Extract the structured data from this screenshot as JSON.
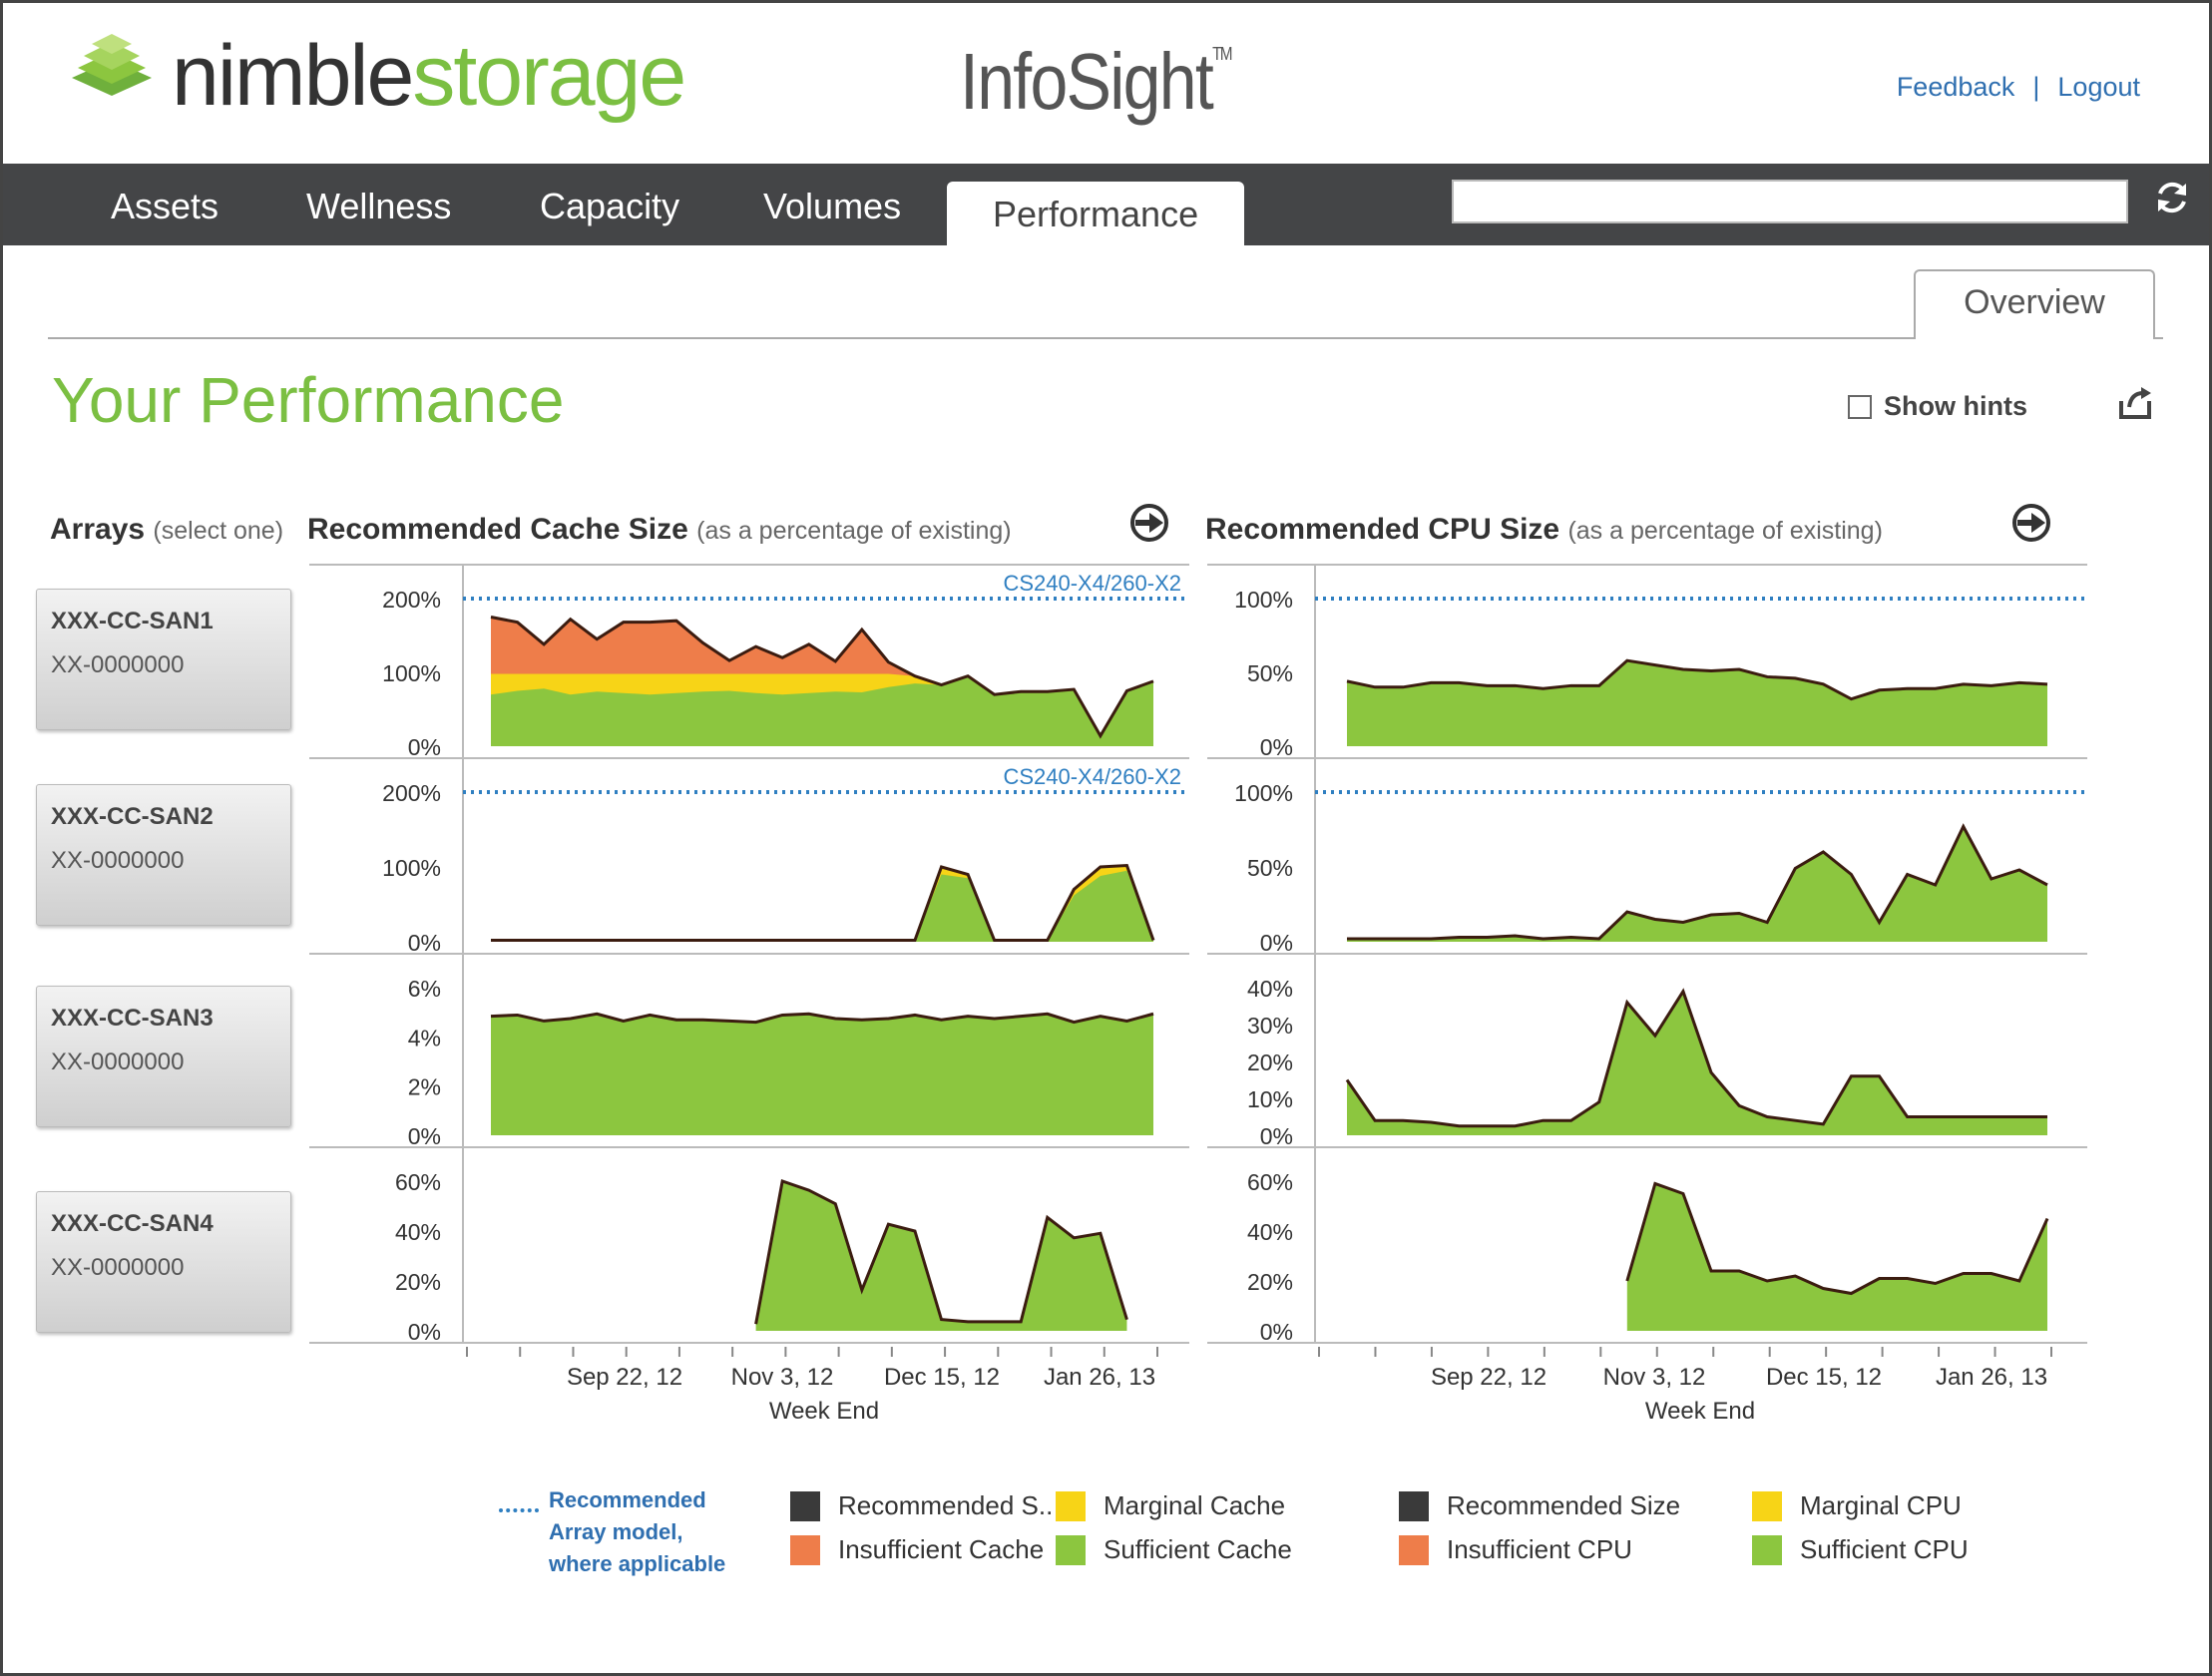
{
  "header": {
    "logo_part1": "nimble",
    "logo_part2": "storage",
    "app_title": "InfoSight",
    "app_title_tm": "TM",
    "feedback_label": "Feedback",
    "separator": "|",
    "logout_label": "Logout"
  },
  "nav": {
    "tabs": [
      {
        "label": "Assets"
      },
      {
        "label": "Wellness"
      },
      {
        "label": "Capacity"
      },
      {
        "label": "Volumes"
      },
      {
        "label": "Performance",
        "active": true
      }
    ],
    "search_value": ""
  },
  "subtabs": {
    "overview_label": "Overview"
  },
  "page": {
    "title": "Your Performance",
    "show_hints_label": "Show hints",
    "show_hints_checked": false
  },
  "arrays_panel": {
    "title": "Arrays",
    "subtitle": "(select one)",
    "arrays": [
      {
        "name": "XXX-CC-SAN1",
        "id": "XX-0000000"
      },
      {
        "name": "XXX-CC-SAN2",
        "id": "XX-0000000"
      },
      {
        "name": "XXX-CC-SAN3",
        "id": "XX-0000000"
      },
      {
        "name": "XXX-CC-SAN4",
        "id": "XX-0000000"
      }
    ]
  },
  "cache_panel": {
    "title": "Recommended Cache Size",
    "subtitle": "(as a percentage of existing)"
  },
  "cpu_panel": {
    "title": "Recommended CPU Size",
    "subtitle": "(as a percentage of existing)"
  },
  "colors": {
    "sufficient": "#8cc63f",
    "marginal": "#f7d417",
    "insufficient": "#ee7d4a",
    "recommended_line": "#3b1c10",
    "model_line": "#2f7fc1"
  },
  "chart_data": [
    {
      "type": "area",
      "panel": "cache",
      "array": "XXX-CC-SAN1",
      "yticks": [
        "200%",
        "100%",
        "0%"
      ],
      "ylim": [
        0,
        200
      ],
      "xticks": [
        "Sep 22, 12",
        "Nov 3, 12",
        "Dec 15, 12",
        "Jan 26, 13"
      ],
      "xlabel": "Week End",
      "reference_line": {
        "value": 200,
        "label": "CS240-X4/260-X2"
      },
      "series": [
        {
          "name": "Recommended Size",
          "values": [
            175,
            168,
            138,
            172,
            145,
            168,
            168,
            170,
            140,
            116,
            135,
            120,
            138,
            115,
            158,
            114,
            95,
            83,
            95,
            70,
            74,
            74,
            77,
            14,
            75,
            88
          ]
        },
        {
          "name": "Sufficient Cache",
          "values": [
            70,
            75,
            78,
            70,
            74,
            72,
            70,
            72,
            74,
            75,
            72,
            70,
            72,
            74,
            73,
            80,
            85,
            83,
            95,
            70,
            74,
            74,
            77,
            14,
            75,
            88
          ]
        },
        {
          "name": "Marginal Cache",
          "values": [
            98,
            98,
            98,
            98,
            98,
            98,
            98,
            98,
            98,
            98,
            98,
            98,
            98,
            98,
            98,
            98,
            95,
            83,
            95,
            70,
            74,
            74,
            77,
            14,
            75,
            88
          ]
        }
      ]
    },
    {
      "type": "area",
      "panel": "cache",
      "array": "XXX-CC-SAN2",
      "yticks": [
        "200%",
        "100%",
        "0%"
      ],
      "ylim": [
        0,
        200
      ],
      "xticks": [
        "Sep 22, 12",
        "Nov 3, 12",
        "Dec 15, 12",
        "Jan 26, 13"
      ],
      "xlabel": "Week End",
      "reference_line": {
        "value": 200,
        "label": "CS240-X4/260-X2"
      },
      "series": [
        {
          "name": "Recommended Size",
          "values": [
            2,
            2,
            2,
            2,
            2,
            2,
            2,
            2,
            2,
            2,
            2,
            2,
            2,
            2,
            2,
            2,
            2,
            100,
            90,
            2,
            2,
            2,
            70,
            100,
            102,
            2
          ]
        },
        {
          "name": "Sufficient Cache",
          "values": [
            2,
            2,
            2,
            2,
            2,
            2,
            2,
            2,
            2,
            2,
            2,
            2,
            2,
            2,
            2,
            2,
            2,
            90,
            85,
            2,
            2,
            2,
            62,
            88,
            95,
            2
          ]
        }
      ]
    },
    {
      "type": "area",
      "panel": "cache",
      "array": "XXX-CC-SAN3",
      "yticks": [
        "6%",
        "4%",
        "2%",
        "0%"
      ],
      "ylim": [
        0,
        6.2
      ],
      "xticks": [
        "Sep 22, 12",
        "Nov 3, 12",
        "Dec 15, 12",
        "Jan 26, 13"
      ],
      "xlabel": "Week End",
      "series": [
        {
          "name": "Recommended Size",
          "values": [
            5.0,
            5.05,
            4.8,
            4.9,
            5.1,
            4.8,
            5.05,
            4.85,
            4.85,
            4.8,
            4.75,
            5.05,
            5.1,
            4.9,
            4.85,
            4.9,
            5.05,
            4.85,
            5.0,
            4.9,
            5.0,
            5.1,
            4.75,
            5.0,
            4.8,
            5.1
          ]
        },
        {
          "name": "Sufficient Cache",
          "values": [
            5.0,
            5.05,
            4.8,
            4.9,
            5.1,
            4.8,
            5.05,
            4.85,
            4.85,
            4.8,
            4.75,
            5.05,
            5.1,
            4.9,
            4.85,
            4.9,
            5.05,
            4.85,
            5.0,
            4.9,
            5.0,
            5.1,
            4.75,
            5.0,
            4.8,
            5.1
          ]
        }
      ]
    },
    {
      "type": "area",
      "panel": "cache",
      "array": "XXX-CC-SAN4",
      "yticks": [
        "60%",
        "40%",
        "20%",
        "0%"
      ],
      "ylim": [
        0,
        66
      ],
      "xticks": [
        "Sep 22, 12",
        "Nov 3, 12",
        "Dec 15, 12",
        "Jan 26, 13"
      ],
      "xlabel": "Week End",
      "series": [
        {
          "name": "Recommended Size",
          "values": [
            null,
            null,
            null,
            null,
            null,
            null,
            null,
            null,
            null,
            null,
            3,
            66,
            62,
            56,
            18,
            47,
            44,
            5,
            4,
            4,
            4,
            50,
            41,
            43,
            5
          ]
        },
        {
          "name": "Sufficient Cache",
          "values": [
            null,
            null,
            null,
            null,
            null,
            null,
            null,
            null,
            null,
            null,
            3,
            66,
            62,
            56,
            18,
            47,
            44,
            5,
            4,
            4,
            4,
            50,
            41,
            43,
            5
          ]
        }
      ]
    },
    {
      "type": "area",
      "panel": "cpu",
      "array": "XXX-CC-SAN1",
      "yticks": [
        "100%",
        "50%",
        "0%"
      ],
      "ylim": [
        0,
        100
      ],
      "xticks": [
        "Sep 22, 12",
        "Nov 3, 12",
        "Dec 15, 12",
        "Jan 26, 13"
      ],
      "xlabel": "Week End",
      "reference_line": {
        "value": 100
      },
      "series": [
        {
          "name": "Recommended Size",
          "values": [
            44,
            40,
            40,
            43,
            43,
            41,
            41,
            39,
            41,
            41,
            58,
            55,
            52,
            51,
            52,
            47,
            46,
            42,
            32,
            38,
            39,
            39,
            42,
            41,
            43,
            42
          ]
        },
        {
          "name": "Sufficient CPU",
          "values": [
            44,
            40,
            40,
            43,
            43,
            41,
            41,
            39,
            41,
            41,
            58,
            55,
            52,
            51,
            52,
            47,
            46,
            42,
            32,
            38,
            39,
            39,
            42,
            41,
            43,
            42
          ]
        }
      ]
    },
    {
      "type": "area",
      "panel": "cpu",
      "array": "XXX-CC-SAN2",
      "yticks": [
        "100%",
        "50%",
        "0%"
      ],
      "ylim": [
        0,
        100
      ],
      "xticks": [
        "Sep 22, 12",
        "Nov 3, 12",
        "Dec 15, 12",
        "Jan 26, 13"
      ],
      "xlabel": "Week End",
      "reference_line": {
        "value": 100
      },
      "series": [
        {
          "name": "Recommended Size",
          "values": [
            2,
            2,
            2,
            2,
            3,
            3,
            4,
            2,
            3,
            2,
            20,
            15,
            13,
            18,
            19,
            13,
            49,
            60,
            45,
            13,
            45,
            38,
            77,
            42,
            48,
            38
          ]
        },
        {
          "name": "Sufficient CPU",
          "values": [
            2,
            2,
            2,
            2,
            3,
            3,
            4,
            2,
            3,
            2,
            20,
            15,
            13,
            18,
            19,
            13,
            49,
            60,
            45,
            13,
            45,
            38,
            77,
            42,
            48,
            38
          ]
        }
      ]
    },
    {
      "type": "area",
      "panel": "cpu",
      "array": "XXX-CC-SAN3",
      "yticks": [
        "40%",
        "30%",
        "20%",
        "10%",
        "0%"
      ],
      "ylim": [
        0,
        40
      ],
      "xticks": [
        "Sep 22, 12",
        "Nov 3, 12",
        "Dec 15, 12",
        "Jan 26, 13"
      ],
      "xlabel": "Week End",
      "series": [
        {
          "name": "Recommended Size",
          "values": [
            15,
            4,
            4,
            3.5,
            2.5,
            2.5,
            2.5,
            4,
            4,
            9,
            36,
            27,
            39,
            17,
            8,
            5,
            4,
            3,
            16,
            16,
            5,
            5,
            5,
            5,
            5,
            5
          ]
        },
        {
          "name": "Sufficient CPU",
          "values": [
            15,
            4,
            4,
            3.5,
            2.5,
            2.5,
            2.5,
            4,
            4,
            9,
            36,
            27,
            39,
            17,
            8,
            5,
            4,
            3,
            16,
            16,
            5,
            5,
            5,
            5,
            5,
            5
          ]
        }
      ]
    },
    {
      "type": "area",
      "panel": "cpu",
      "array": "XXX-CC-SAN4",
      "yticks": [
        "60%",
        "40%",
        "20%",
        "0%"
      ],
      "ylim": [
        0,
        60
      ],
      "xticks": [
        "Sep 22, 12",
        "Nov 3, 12",
        "Dec 15, 12",
        "Jan 26, 13"
      ],
      "xlabel": "Week End",
      "series": [
        {
          "name": "Recommended Size",
          "values": [
            null,
            null,
            null,
            null,
            null,
            null,
            null,
            null,
            null,
            null,
            20,
            59,
            55,
            24,
            24,
            20,
            22,
            17,
            15,
            21,
            21,
            19,
            23,
            23,
            20,
            45
          ]
        },
        {
          "name": "Sufficient CPU",
          "values": [
            null,
            null,
            null,
            null,
            null,
            null,
            null,
            null,
            null,
            null,
            20,
            59,
            55,
            24,
            24,
            20,
            22,
            17,
            15,
            21,
            21,
            19,
            23,
            23,
            20,
            45
          ]
        }
      ]
    }
  ],
  "legend": {
    "note_line1": "Recommended",
    "note_line2": "Array model,",
    "note_line3": "where applicable",
    "cache_items": [
      {
        "label": "Recommended S..",
        "color": "#3a3a3a"
      },
      {
        "label": "Marginal Cache",
        "color": "#f7d417"
      },
      {
        "label": "Insufficient Cache",
        "color": "#ee7d4a"
      },
      {
        "label": "Sufficient Cache",
        "color": "#8cc63f"
      }
    ],
    "cpu_items": [
      {
        "label": "Recommended Size",
        "color": "#3a3a3a"
      },
      {
        "label": "Marginal CPU",
        "color": "#f7d417"
      },
      {
        "label": "Insufficient CPU",
        "color": "#ee7d4a"
      },
      {
        "label": "Sufficient CPU",
        "color": "#8cc63f"
      }
    ]
  }
}
